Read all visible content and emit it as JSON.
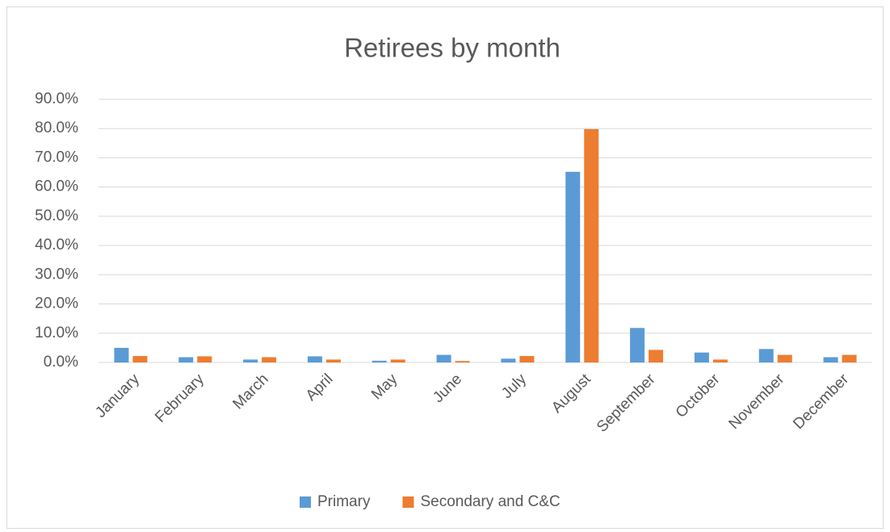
{
  "chart_data": {
    "type": "bar",
    "title": "Retirees by month",
    "categories": [
      "January",
      "February",
      "March",
      "April",
      "May",
      "June",
      "July",
      "August",
      "September",
      "October",
      "November",
      "December"
    ],
    "series": [
      {
        "name": "Primary",
        "color": "#5b9bd5",
        "values": [
          5.0,
          1.8,
          1.0,
          2.1,
          0.6,
          2.6,
          1.3,
          65.2,
          11.8,
          3.4,
          4.6,
          1.8
        ]
      },
      {
        "name": "Secondary and C&C",
        "color": "#ed7d31",
        "values": [
          2.2,
          2.1,
          1.8,
          1.0,
          1.0,
          0.5,
          2.2,
          79.8,
          4.3,
          1.0,
          2.6,
          2.6
        ]
      }
    ],
    "ylim": [
      0,
      90
    ],
    "yticks": [
      {
        "value": 0,
        "label": "0.0%"
      },
      {
        "value": 10,
        "label": "10.0%"
      },
      {
        "value": 20,
        "label": "20.0%"
      },
      {
        "value": 30,
        "label": "30.0%"
      },
      {
        "value": 40,
        "label": "40.0%"
      },
      {
        "value": 50,
        "label": "50.0%"
      },
      {
        "value": 60,
        "label": "60.0%"
      },
      {
        "value": 70,
        "label": "70.0%"
      },
      {
        "value": 80,
        "label": "80.0%"
      },
      {
        "value": 90,
        "label": "90.0%"
      }
    ],
    "grid": true,
    "legend": "bottom"
  }
}
